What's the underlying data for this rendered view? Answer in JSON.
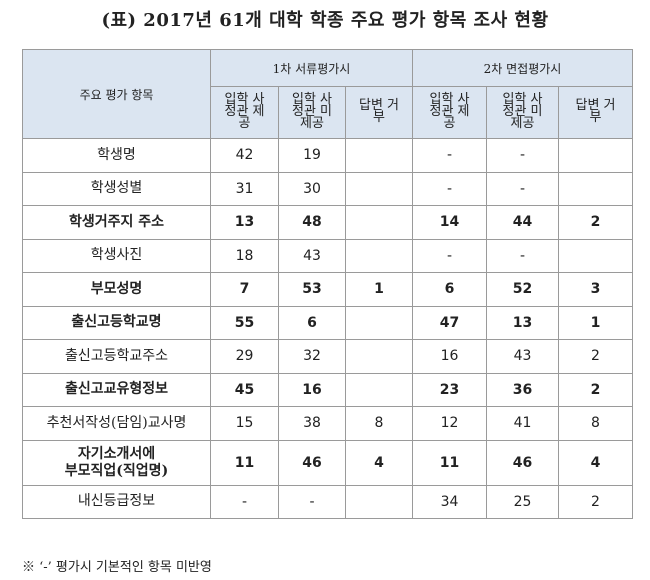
{
  "title": "(표) 2017년 61개 대학 학종 주요 평가 항목 조사 현황",
  "header": {
    "item_col": "주요 평가 항목",
    "group1": "1차 서류평가시",
    "group2": "2차 면접평가시",
    "sub_cols": [
      "입학 사정관 제공",
      "입학 사정관 미제공",
      "답변 거부",
      "입학 사정관 제공",
      "입학 사정관 미제공",
      "답변 거부"
    ]
  },
  "rows": [
    {
      "item": "학생명",
      "values": [
        "42",
        "19",
        "",
        "-",
        "-",
        ""
      ],
      "bold": false
    },
    {
      "item": "학생성별",
      "values": [
        "31",
        "30",
        "",
        "-",
        "-",
        ""
      ],
      "bold": false
    },
    {
      "item": "학생거주지 주소",
      "values": [
        "13",
        "48",
        "",
        "14",
        "44",
        "2"
      ],
      "bold": true
    },
    {
      "item": "학생사진",
      "values": [
        "18",
        "43",
        "",
        "-",
        "-",
        ""
      ],
      "bold": false
    },
    {
      "item": "부모성명",
      "values": [
        "7",
        "53",
        "1",
        "6",
        "52",
        "3"
      ],
      "bold": true
    },
    {
      "item": "출신고등학교명",
      "values": [
        "55",
        "6",
        "",
        "47",
        "13",
        "1"
      ],
      "bold": true
    },
    {
      "item": "출신고등학교주소",
      "values": [
        "29",
        "32",
        "",
        "16",
        "43",
        "2"
      ],
      "bold": false
    },
    {
      "item": "출신고교유형정보",
      "values": [
        "45",
        "16",
        "",
        "23",
        "36",
        "2"
      ],
      "bold": true
    },
    {
      "item": "추천서작성(담임)교사명",
      "values": [
        "15",
        "38",
        "8",
        "12",
        "41",
        "8"
      ],
      "bold": false
    },
    {
      "item": "자기소개서에 부모직업(직업명)",
      "values": [
        "11",
        "46",
        "4",
        "11",
        "46",
        "4"
      ],
      "bold": true
    },
    {
      "item": "내신등급정보",
      "values": [
        "-",
        "-",
        "",
        "34",
        "25",
        "2"
      ],
      "bold": false
    }
  ],
  "note": "※ ‘-’ 평가시 기본적인 항목 미반영"
}
